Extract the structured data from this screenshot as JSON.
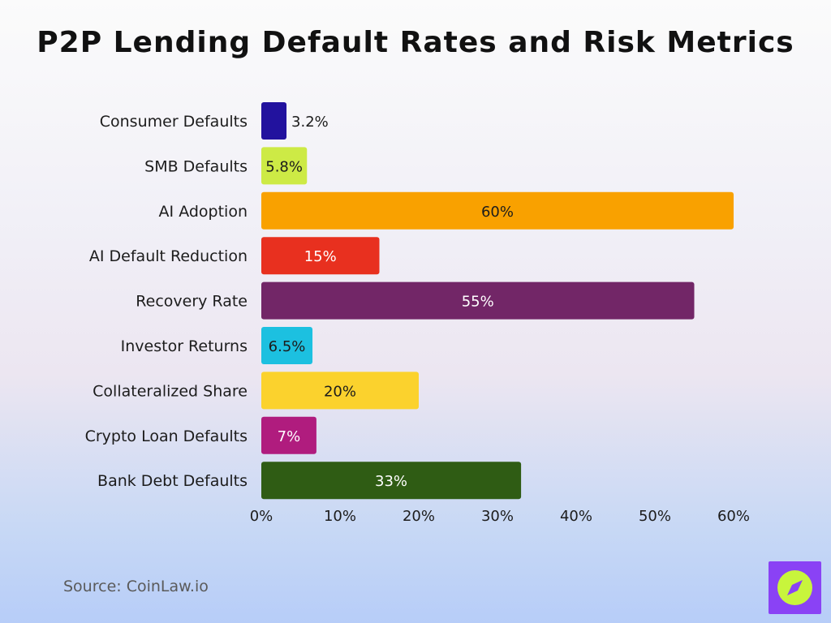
{
  "title": "P2P Lending Default Rates and Risk Metrics",
  "source": "Source: CoinLaw.io",
  "logo": {
    "icon": "compass-icon",
    "bg": "#8a42f5",
    "fg": "#c8f53c"
  },
  "chart_data": {
    "type": "bar",
    "orientation": "horizontal",
    "categories": [
      "Consumer Defaults",
      "SMB Defaults",
      "AI Adoption",
      "AI Default Reduction",
      "Recovery Rate",
      "Investor Returns",
      "Collateralized Share",
      "Crypto Loan Defaults",
      "Bank Debt Defaults"
    ],
    "values": [
      3.2,
      5.8,
      60,
      15,
      55,
      6.5,
      20,
      7,
      33
    ],
    "value_labels": [
      "3.2%",
      "5.8%",
      "60%",
      "15%",
      "55%",
      "6.5%",
      "20%",
      "7%",
      "33%"
    ],
    "colors": [
      "#22129e",
      "#cdea45",
      "#f9a100",
      "#e8301f",
      "#722667",
      "#1cc0e0",
      "#fbd22d",
      "#b01c7e",
      "#2f5c14"
    ],
    "label_colors": [
      "#1c1c1c",
      "#1c1c1c",
      "#1c1c1c",
      "#ffffff",
      "#ffffff",
      "#1c1c1c",
      "#1c1c1c",
      "#ffffff",
      "#ffffff"
    ],
    "xlim": [
      0,
      60
    ],
    "xticks": [
      0,
      10,
      20,
      30,
      40,
      50,
      60
    ],
    "xtick_labels": [
      "0%",
      "10%",
      "20%",
      "30%",
      "40%",
      "50%",
      "60%"
    ],
    "xlabel": "",
    "ylabel": "",
    "grid": false,
    "legend": "none"
  }
}
